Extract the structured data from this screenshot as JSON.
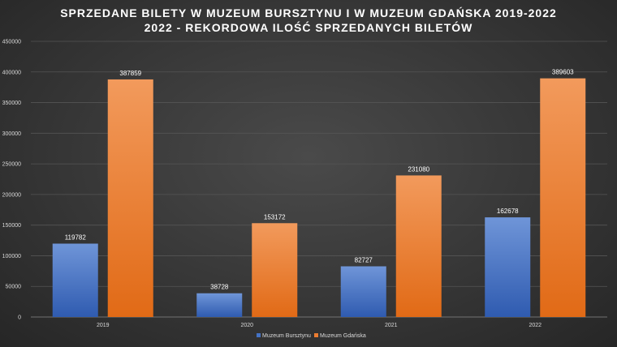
{
  "chart_data": {
    "type": "bar",
    "title": "SPRZEDANE BILETY W MUZEUM BURSZTYNU I W MUZEUM GDAŃSKA 2019-2022",
    "subtitle": "2022 - REKORDOWA ILOŚĆ SPRZEDANYCH BILETÓW",
    "categories": [
      "2019",
      "2020",
      "2021",
      "2022"
    ],
    "series": [
      {
        "name": "Muzeum Bursztynu",
        "values": [
          119782,
          38728,
          82727,
          162678
        ],
        "color": "#4472c4"
      },
      {
        "name": "Muzeum Gdańska",
        "values": [
          387859,
          153172,
          231080,
          389603
        ],
        "color": "#ed7d31"
      }
    ],
    "ylim": [
      0,
      450000
    ],
    "yticks": [
      "0",
      "50000",
      "100000",
      "150000",
      "200000",
      "250000",
      "300000",
      "350000",
      "400000",
      "450000"
    ],
    "grid": true,
    "legend": "bottom",
    "background": "#3a3a3a"
  }
}
